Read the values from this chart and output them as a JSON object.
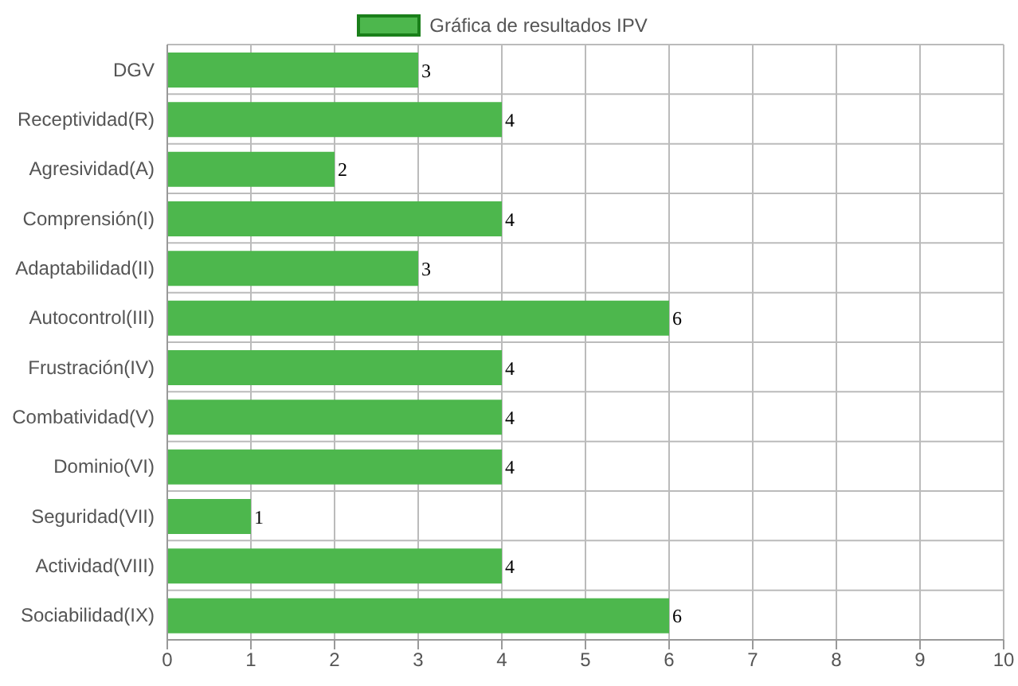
{
  "chart_data": {
    "type": "bar",
    "orientation": "horizontal",
    "categories": [
      "DGV",
      "Receptividad(R)",
      "Agresividad(A)",
      "Comprensión(I)",
      "Adaptabilidad(II)",
      "Autocontrol(III)",
      "Frustración(IV)",
      "Combatividad(V)",
      "Dominio(VI)",
      "Seguridad(VII)",
      "Actividad(VIII)",
      "Sociabilidad(IX)"
    ],
    "series": [
      {
        "name": "Gráfica de resultados IPV",
        "color": "#4db74d",
        "values": [
          3,
          4,
          2,
          4,
          3,
          6,
          4,
          4,
          4,
          1,
          4,
          6
        ]
      }
    ],
    "xlim": [
      0,
      10
    ],
    "xticks": [
      0,
      1,
      2,
      3,
      4,
      5,
      6,
      7,
      8,
      9,
      10
    ],
    "grid": true,
    "legend": "top",
    "data_labels": true
  }
}
